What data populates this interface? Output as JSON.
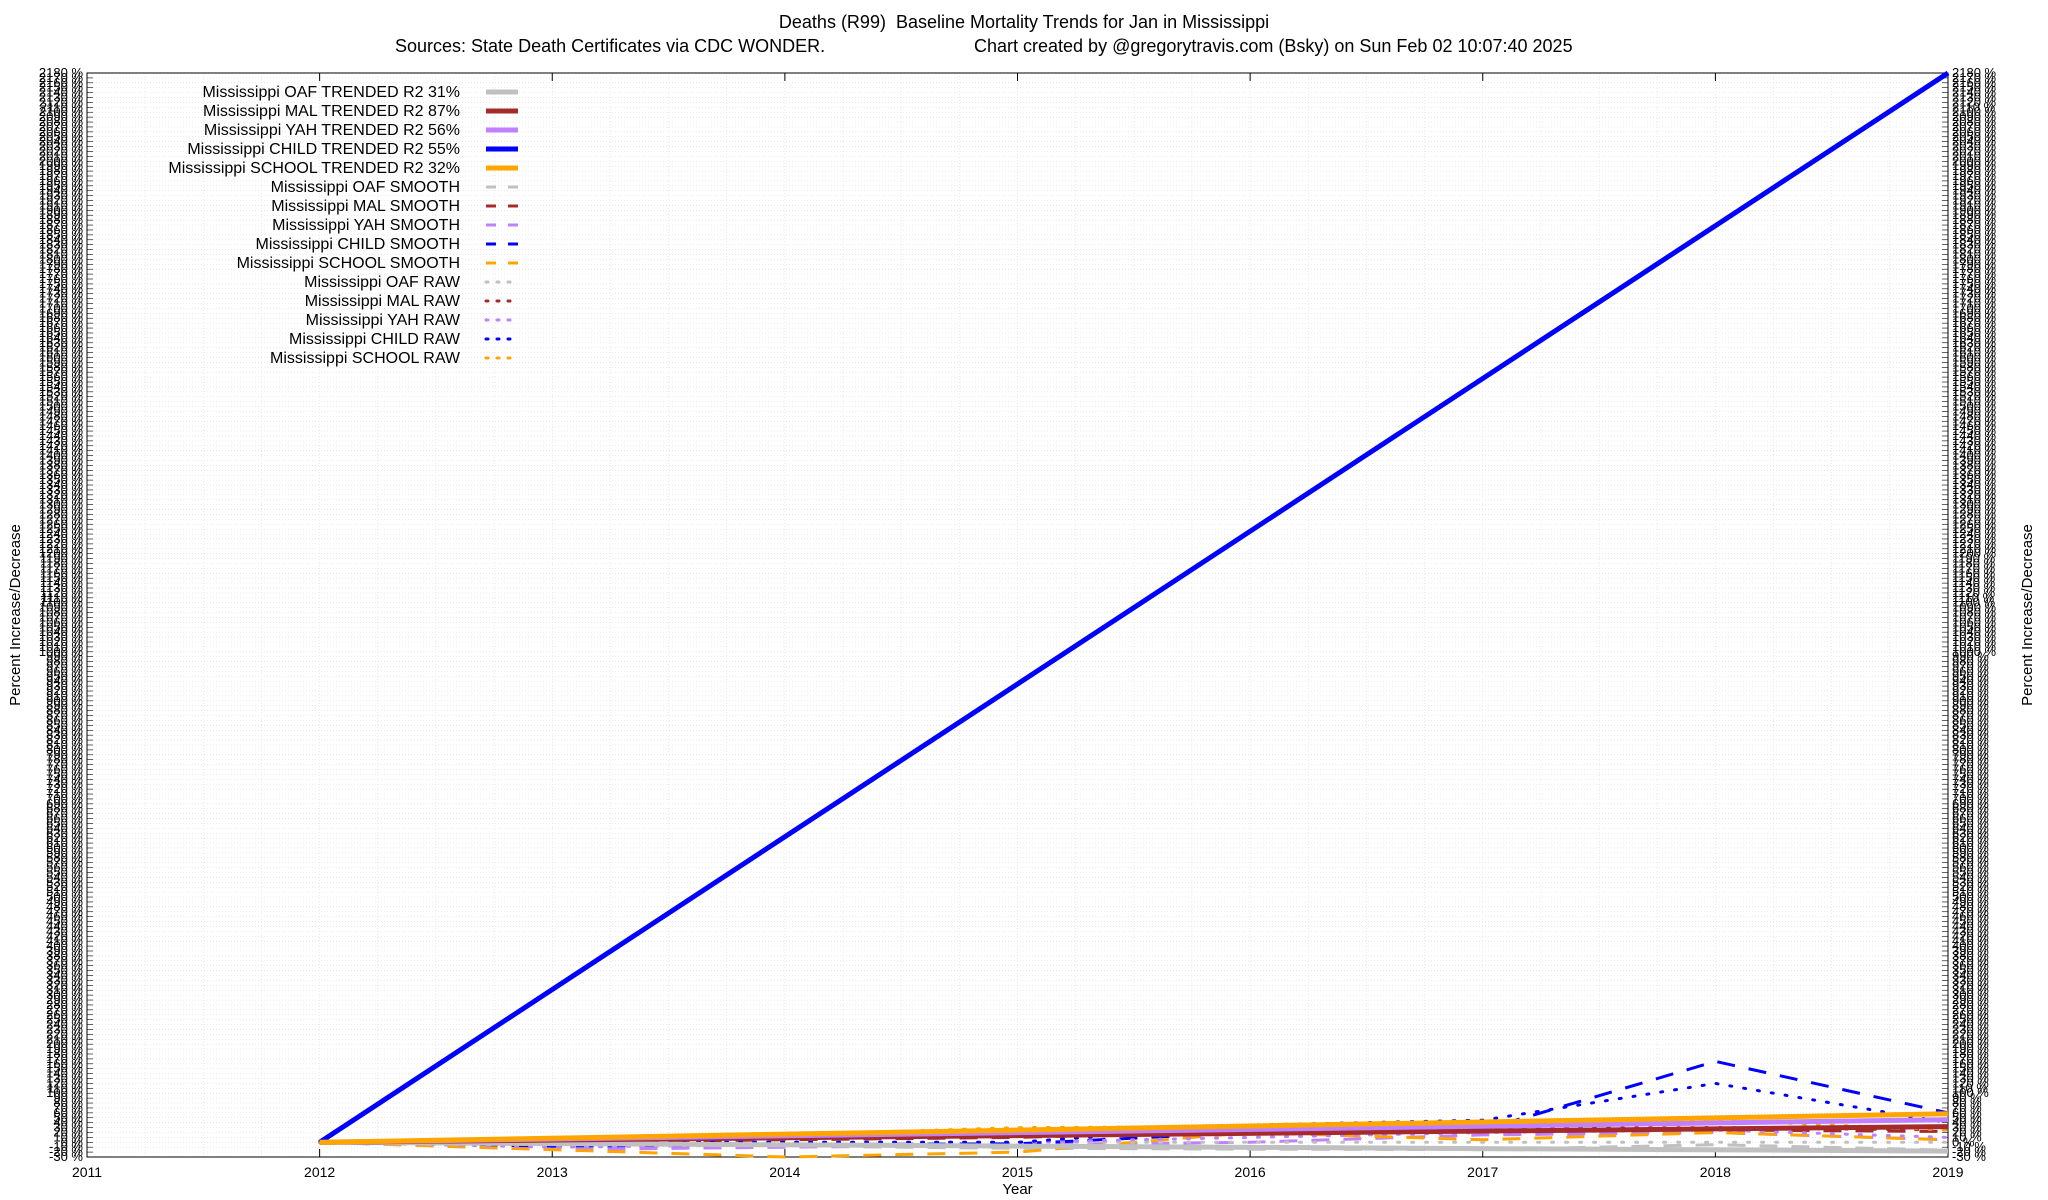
{
  "chart_data": {
    "type": "line",
    "title": "Deaths (R99)  Baseline Mortality Trends for Jan in Mississippi",
    "subtitle_left": "Sources: State Death Certificates via CDC WONDER.",
    "subtitle_right": "Chart created by @gregorytravis.com (Bsky) on Sun Feb 02 10:07:40 2025",
    "xlabel": "Year",
    "ylabel": "Percent Increase/Decrease",
    "xlim": [
      2011,
      2019
    ],
    "x_ticks": [
      "2011",
      "2012",
      "2013",
      "2014",
      "2015",
      "2016",
      "2017",
      "2018",
      "2019"
    ],
    "ylim": [
      -30,
      2180
    ],
    "y_tick_step": 10,
    "y_tick_suffix": " %",
    "grid": true,
    "legend_position": "top-left",
    "series": [
      {
        "name": "Mississippi OAF TRENDED R2  31%",
        "style": "solid",
        "color": "#c0c0c0",
        "x": [
          2012,
          2019
        ],
        "y": [
          0,
          -18
        ]
      },
      {
        "name": "Mississippi MAL TRENDED R2  87%",
        "style": "solid",
        "color": "#a52a2a",
        "x": [
          2012,
          2019
        ],
        "y": [
          0,
          32
        ]
      },
      {
        "name": "Mississippi YAH TRENDED R2  56%",
        "style": "solid",
        "color": "#c080ff",
        "x": [
          2012,
          2019
        ],
        "y": [
          0,
          46
        ]
      },
      {
        "name": "Mississippi CHILD TRENDED R2  55%",
        "style": "solid",
        "color": "#0000ff",
        "x": [
          2012,
          2019
        ],
        "y": [
          0,
          2180
        ]
      },
      {
        "name": "Mississippi SCHOOL TRENDED R2  32%",
        "style": "solid",
        "color": "#ffa500",
        "x": [
          2012,
          2019
        ],
        "y": [
          0,
          58
        ]
      },
      {
        "name": "Mississippi OAF SMOOTH",
        "style": "dashed",
        "color": "#c0c0c0",
        "x": [
          2012,
          2013,
          2014,
          2015,
          2016,
          2017,
          2018,
          2019
        ],
        "y": [
          0,
          -5,
          -8,
          -12,
          -14,
          -15,
          -5,
          -16
        ]
      },
      {
        "name": "Mississippi MAL SMOOTH",
        "style": "dashed",
        "color": "#a52a2a",
        "x": [
          2012,
          2013,
          2014,
          2015,
          2016,
          2017,
          2018,
          2019
        ],
        "y": [
          0,
          0,
          5,
          10,
          22,
          25,
          25,
          22
        ]
      },
      {
        "name": "Mississippi YAH SMOOTH",
        "style": "dashed",
        "color": "#c080ff",
        "x": [
          2012,
          2013,
          2014,
          2015,
          2016,
          2017,
          2018,
          2019
        ],
        "y": [
          0,
          -15,
          -10,
          -5,
          0,
          15,
          20,
          5
        ]
      },
      {
        "name": "Mississippi CHILD SMOOTH",
        "style": "dashed",
        "color": "#0000ff",
        "x": [
          2012,
          2013,
          2014,
          2015,
          2016,
          2017,
          2018,
          2019
        ],
        "y": [
          0,
          -8,
          -5,
          -3,
          20,
          25,
          165,
          60
        ]
      },
      {
        "name": "Mississippi SCHOOL SMOOTH",
        "style": "dashed",
        "color": "#ffa500",
        "x": [
          2012,
          2013,
          2014,
          2015,
          2016,
          2017,
          2018,
          2019
        ],
        "y": [
          0,
          -15,
          -30,
          -20,
          20,
          5,
          20,
          5
        ]
      },
      {
        "name": "Mississippi OAF RAW",
        "style": "dotted",
        "color": "#c0c0c0",
        "x": [
          2012,
          2013,
          2014,
          2015,
          2016,
          2017,
          2018,
          2019
        ],
        "y": [
          0,
          0,
          0,
          0,
          0,
          0,
          0,
          0
        ]
      },
      {
        "name": "Mississippi MAL RAW",
        "style": "dotted",
        "color": "#a52a2a",
        "x": [
          2012,
          2013,
          2014,
          2015,
          2016,
          2017,
          2018,
          2019
        ],
        "y": [
          0,
          5,
          8,
          15,
          22,
          28,
          30,
          25
        ]
      },
      {
        "name": "Mississippi YAH RAW",
        "style": "dotted",
        "color": "#c080ff",
        "x": [
          2012,
          2013,
          2014,
          2015,
          2016,
          2017,
          2018,
          2019
        ],
        "y": [
          0,
          -10,
          -5,
          0,
          10,
          20,
          25,
          10
        ]
      },
      {
        "name": "Mississippi CHILD RAW",
        "style": "dotted",
        "color": "#0000ff",
        "x": [
          2012,
          2013,
          2014,
          2015,
          2016,
          2017,
          2018,
          2019
        ],
        "y": [
          0,
          0,
          0,
          0,
          35,
          45,
          120,
          40
        ]
      },
      {
        "name": "Mississippi SCHOOL RAW",
        "style": "dotted",
        "color": "#ffa500",
        "x": [
          2012,
          2013,
          2014,
          2015,
          2016,
          2017,
          2018,
          2019
        ],
        "y": [
          0,
          5,
          15,
          30,
          32,
          35,
          45,
          25
        ]
      }
    ]
  }
}
